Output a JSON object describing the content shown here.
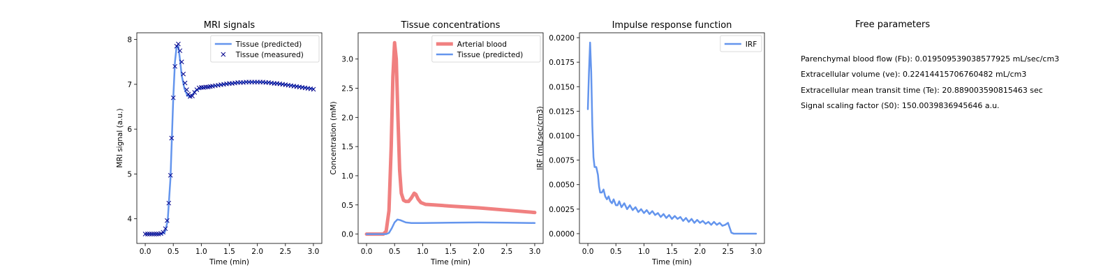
{
  "chart_data": [
    {
      "type": "line",
      "title": "MRI signals",
      "xlabel": "Time (min)",
      "ylabel": "MRI signal (a.u.)",
      "xlim": [
        -0.15,
        3.15
      ],
      "ylim": [
        3.45,
        8.15
      ],
      "xticks": [
        0.0,
        0.5,
        1.0,
        1.5,
        2.0,
        2.5,
        3.0
      ],
      "xtick_labels": [
        "0.0",
        "0.5",
        "1.0",
        "1.5",
        "2.0",
        "2.5",
        "3.0"
      ],
      "yticks": [
        4,
        5,
        6,
        7,
        8
      ],
      "ytick_labels": [
        "4",
        "5",
        "6",
        "7",
        "8"
      ],
      "legend": "top-right",
      "series": [
        {
          "name": "Tissue (predicted)",
          "style": "line",
          "color": "#6495ED",
          "points": [
            [
              0.0,
              3.66
            ],
            [
              0.3,
              3.66
            ],
            [
              0.35,
              3.7
            ],
            [
              0.4,
              3.95
            ],
            [
              0.45,
              4.9
            ],
            [
              0.5,
              6.7
            ],
            [
              0.53,
              7.5
            ],
            [
              0.56,
              7.85
            ],
            [
              0.59,
              7.85
            ],
            [
              0.62,
              7.55
            ],
            [
              0.65,
              7.2
            ],
            [
              0.7,
              6.9
            ],
            [
              0.75,
              6.75
            ],
            [
              0.8,
              6.72
            ],
            [
              0.85,
              6.78
            ],
            [
              0.9,
              6.86
            ],
            [
              1.0,
              6.92
            ],
            [
              1.2,
              6.96
            ],
            [
              1.4,
              7.0
            ],
            [
              1.6,
              7.03
            ],
            [
              1.8,
              7.05
            ],
            [
              2.0,
              7.05
            ],
            [
              2.2,
              7.04
            ],
            [
              2.4,
              7.01
            ],
            [
              2.6,
              6.98
            ],
            [
              2.8,
              6.94
            ],
            [
              3.0,
              6.9
            ]
          ]
        },
        {
          "name": "Tissue (measured)",
          "style": "marker",
          "marker": "x",
          "color": "#00008B",
          "points": [
            [
              0.0,
              3.66
            ],
            [
              0.04,
              3.66
            ],
            [
              0.08,
              3.66
            ],
            [
              0.12,
              3.66
            ],
            [
              0.16,
              3.66
            ],
            [
              0.2,
              3.66
            ],
            [
              0.24,
              3.66
            ],
            [
              0.28,
              3.67
            ],
            [
              0.32,
              3.7
            ],
            [
              0.36,
              3.78
            ],
            [
              0.39,
              3.96
            ],
            [
              0.42,
              4.35
            ],
            [
              0.45,
              4.97
            ],
            [
              0.47,
              5.8
            ],
            [
              0.5,
              6.7
            ],
            [
              0.53,
              7.4
            ],
            [
              0.56,
              7.85
            ],
            [
              0.59,
              7.9
            ],
            [
              0.62,
              7.75
            ],
            [
              0.65,
              7.5
            ],
            [
              0.68,
              7.23
            ],
            [
              0.71,
              7.03
            ],
            [
              0.74,
              6.88
            ],
            [
              0.77,
              6.78
            ],
            [
              0.8,
              6.73
            ],
            [
              0.84,
              6.74
            ],
            [
              0.88,
              6.82
            ],
            [
              0.92,
              6.88
            ],
            [
              0.96,
              6.92
            ],
            [
              1.0,
              6.93
            ],
            [
              1.04,
              6.93
            ],
            [
              1.08,
              6.94
            ],
            [
              1.12,
              6.94
            ],
            [
              1.16,
              6.95
            ],
            [
              1.2,
              6.96
            ],
            [
              1.25,
              6.97
            ],
            [
              1.3,
              6.98
            ],
            [
              1.35,
              6.99
            ],
            [
              1.4,
              7.0
            ],
            [
              1.45,
              7.01
            ],
            [
              1.5,
              7.02
            ],
            [
              1.55,
              7.02
            ],
            [
              1.6,
              7.03
            ],
            [
              1.65,
              7.04
            ],
            [
              1.7,
              7.04
            ],
            [
              1.75,
              7.04
            ],
            [
              1.8,
              7.05
            ],
            [
              1.85,
              7.05
            ],
            [
              1.9,
              7.05
            ],
            [
              1.95,
              7.05
            ],
            [
              2.0,
              7.05
            ],
            [
              2.05,
              7.05
            ],
            [
              2.1,
              7.05
            ],
            [
              2.15,
              7.04
            ],
            [
              2.2,
              7.04
            ],
            [
              2.25,
              7.03
            ],
            [
              2.3,
              7.02
            ],
            [
              2.35,
              7.02
            ],
            [
              2.4,
              7.01
            ],
            [
              2.45,
              7.0
            ],
            [
              2.5,
              6.99
            ],
            [
              2.55,
              6.98
            ],
            [
              2.6,
              6.97
            ],
            [
              2.65,
              6.96
            ],
            [
              2.7,
              6.95
            ],
            [
              2.75,
              6.94
            ],
            [
              2.8,
              6.93
            ],
            [
              2.85,
              6.92
            ],
            [
              2.9,
              6.91
            ],
            [
              2.95,
              6.9
            ],
            [
              3.0,
              6.89
            ]
          ]
        }
      ]
    },
    {
      "type": "line",
      "title": "Tissue concentrations",
      "xlabel": "Time (min)",
      "ylabel": "Concentration (mM)",
      "xlim": [
        -0.15,
        3.15
      ],
      "ylim": [
        -0.16,
        3.45
      ],
      "xticks": [
        0.0,
        0.5,
        1.0,
        1.5,
        2.0,
        2.5,
        3.0
      ],
      "xtick_labels": [
        "0.0",
        "0.5",
        "1.0",
        "1.5",
        "2.0",
        "2.5",
        "3.0"
      ],
      "yticks": [
        0.0,
        0.5,
        1.0,
        1.5,
        2.0,
        2.5,
        3.0
      ],
      "ytick_labels": [
        "0.0",
        "0.5",
        "1.0",
        "1.5",
        "2.0",
        "2.5",
        "3.0"
      ],
      "legend": "top-right",
      "series": [
        {
          "name": "Arterial blood",
          "style": "thick-line",
          "color": "#F08080",
          "points": [
            [
              0.0,
              0.0
            ],
            [
              0.3,
              0.0
            ],
            [
              0.35,
              0.05
            ],
            [
              0.4,
              0.4
            ],
            [
              0.44,
              1.5
            ],
            [
              0.47,
              2.7
            ],
            [
              0.5,
              3.28
            ],
            [
              0.53,
              3.0
            ],
            [
              0.56,
              2.0
            ],
            [
              0.59,
              1.1
            ],
            [
              0.62,
              0.7
            ],
            [
              0.66,
              0.58
            ],
            [
              0.7,
              0.56
            ],
            [
              0.75,
              0.56
            ],
            [
              0.8,
              0.62
            ],
            [
              0.85,
              0.7
            ],
            [
              0.88,
              0.68
            ],
            [
              0.92,
              0.6
            ],
            [
              0.97,
              0.54
            ],
            [
              1.05,
              0.51
            ],
            [
              1.2,
              0.5
            ],
            [
              1.5,
              0.48
            ],
            [
              2.0,
              0.45
            ],
            [
              2.5,
              0.41
            ],
            [
              3.0,
              0.37
            ]
          ]
        },
        {
          "name": "Tissue (predicted)",
          "style": "line",
          "color": "#6495ED",
          "points": [
            [
              0.0,
              0.0
            ],
            [
              0.35,
              0.0
            ],
            [
              0.4,
              0.02
            ],
            [
              0.45,
              0.1
            ],
            [
              0.5,
              0.2
            ],
            [
              0.55,
              0.25
            ],
            [
              0.6,
              0.24
            ],
            [
              0.7,
              0.2
            ],
            [
              0.8,
              0.19
            ],
            [
              1.0,
              0.19
            ],
            [
              1.5,
              0.195
            ],
            [
              2.0,
              0.2
            ],
            [
              2.5,
              0.195
            ],
            [
              3.0,
              0.19
            ]
          ]
        }
      ]
    },
    {
      "type": "line",
      "title": "Impulse response function",
      "xlabel": "Time (min)",
      "ylabel": "IRF (mL/sec/cm3)",
      "xlim": [
        -0.15,
        3.15
      ],
      "ylim": [
        -0.001,
        0.0205
      ],
      "xticks": [
        0.0,
        0.5,
        1.0,
        1.5,
        2.0,
        2.5,
        3.0
      ],
      "xtick_labels": [
        "0.0",
        "0.5",
        "1.0",
        "1.5",
        "2.0",
        "2.5",
        "3.0"
      ],
      "yticks": [
        0.0,
        0.0025,
        0.005,
        0.0075,
        0.01,
        0.0125,
        0.015,
        0.0175,
        0.02
      ],
      "ytick_labels": [
        "0.0000",
        "0.0025",
        "0.0050",
        "0.0075",
        "0.0100",
        "0.0125",
        "0.0150",
        "0.0175",
        "0.0200"
      ],
      "legend": "top-right",
      "series": [
        {
          "name": "IRF",
          "style": "line",
          "color": "#6495ED",
          "points": [
            [
              0.0,
              0.0127
            ],
            [
              0.02,
              0.0165
            ],
            [
              0.04,
              0.0195
            ],
            [
              0.06,
              0.0165
            ],
            [
              0.08,
              0.011
            ],
            [
              0.1,
              0.0078
            ],
            [
              0.12,
              0.0068
            ],
            [
              0.15,
              0.0068
            ],
            [
              0.18,
              0.006
            ],
            [
              0.2,
              0.0048
            ],
            [
              0.22,
              0.0042
            ],
            [
              0.25,
              0.0042
            ],
            [
              0.28,
              0.0045
            ],
            [
              0.31,
              0.0038
            ],
            [
              0.34,
              0.0035
            ],
            [
              0.37,
              0.0038
            ],
            [
              0.4,
              0.0033
            ],
            [
              0.43,
              0.0031
            ],
            [
              0.46,
              0.0035
            ],
            [
              0.5,
              0.0029
            ],
            [
              0.53,
              0.0029
            ],
            [
              0.56,
              0.0033
            ],
            [
              0.6,
              0.0027
            ],
            [
              0.65,
              0.0031
            ],
            [
              0.7,
              0.0025
            ],
            [
              0.75,
              0.0029
            ],
            [
              0.8,
              0.0024
            ],
            [
              0.85,
              0.0027
            ],
            [
              0.9,
              0.0022
            ],
            [
              0.95,
              0.0025
            ],
            [
              1.0,
              0.0021
            ],
            [
              1.05,
              0.0024
            ],
            [
              1.1,
              0.002
            ],
            [
              1.15,
              0.0023
            ],
            [
              1.2,
              0.0019
            ],
            [
              1.25,
              0.0021
            ],
            [
              1.3,
              0.0017
            ],
            [
              1.35,
              0.002
            ],
            [
              1.4,
              0.0016
            ],
            [
              1.45,
              0.0019
            ],
            [
              1.5,
              0.0015
            ],
            [
              1.55,
              0.0018
            ],
            [
              1.6,
              0.0015
            ],
            [
              1.65,
              0.0017
            ],
            [
              1.7,
              0.0013
            ],
            [
              1.75,
              0.0016
            ],
            [
              1.8,
              0.0012
            ],
            [
              1.85,
              0.0015
            ],
            [
              1.9,
              0.0011
            ],
            [
              1.95,
              0.0014
            ],
            [
              2.0,
              0.0011
            ],
            [
              2.05,
              0.0013
            ],
            [
              2.1,
              0.001
            ],
            [
              2.15,
              0.0012
            ],
            [
              2.2,
              0.0009
            ],
            [
              2.25,
              0.0012
            ],
            [
              2.3,
              0.0009
            ],
            [
              2.35,
              0.0011
            ],
            [
              2.4,
              0.0008
            ],
            [
              2.45,
              0.0009
            ],
            [
              2.5,
              0.0011
            ],
            [
              2.53,
              0.0006
            ],
            [
              2.56,
              0.0001
            ],
            [
              2.6,
              0.0
            ],
            [
              2.8,
              0.0
            ],
            [
              3.0,
              0.0
            ]
          ]
        }
      ]
    }
  ],
  "params_panel": {
    "title": "Free parameters",
    "lines": [
      "Parenchymal blood flow (Fb): 0.019509539038577925 mL/sec/cm3",
      "Extracellular volume (ve): 0.22414415706760482 mL/cm3",
      "Extracellular mean transit time (Te): 20.889003590815463 sec",
      "Signal scaling factor (S0): 150.0039836945646 a.u."
    ]
  }
}
